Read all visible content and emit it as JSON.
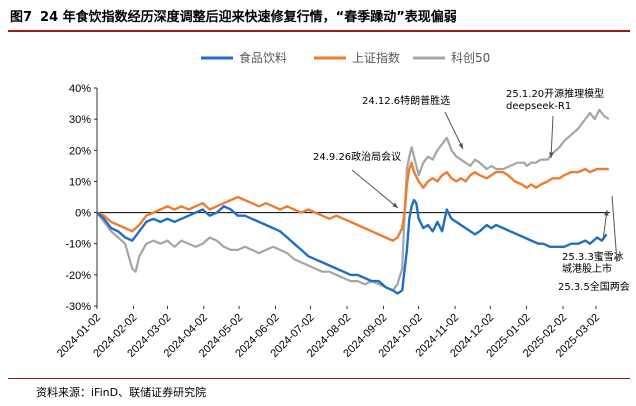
{
  "header": {
    "figure_no": "图7",
    "title": "24 年食饮指数经历深度调整后迎来快速修复行情，“春季躁动”表现偏弱"
  },
  "footer": {
    "source": "资料来源：iFinD、联储证券研究院"
  },
  "colors": {
    "food": "#1f6fc5",
    "sse": "#ed7d31",
    "star": "#a5a5a5",
    "zero": "#000000",
    "accent": "#9b1b1b"
  },
  "chart_data": {
    "type": "line",
    "ylim": [
      -30,
      40
    ],
    "yticks": [
      -30,
      -20,
      -10,
      0,
      10,
      20,
      30,
      40
    ],
    "ytick_labels": [
      "-30%",
      "-20%",
      "-10%",
      "0%",
      "10%",
      "20%",
      "30%",
      "40%"
    ],
    "xlim": [
      0,
      437
    ],
    "xticks": [
      0,
      31,
      60,
      91,
      121,
      152,
      182,
      213,
      244,
      274,
      305,
      335,
      366,
      397,
      425
    ],
    "xtick_labels": [
      "2024-01-02",
      "2024-02-02",
      "2024-03-02",
      "2024-04-02",
      "2024-05-02",
      "2024-06-02",
      "2024-07-02",
      "2024-08-02",
      "2024-09-02",
      "2024-10-02",
      "2024-11-02",
      "2024-12-02",
      "2025-01-02",
      "2025-02-02",
      "2025-03-02"
    ],
    "series": [
      {
        "name": "食品饮料",
        "key": "food",
        "points": [
          [
            0,
            0
          ],
          [
            6,
            -2
          ],
          [
            12,
            -5
          ],
          [
            18,
            -6
          ],
          [
            24,
            -8
          ],
          [
            30,
            -9
          ],
          [
            36,
            -6
          ],
          [
            42,
            -3
          ],
          [
            48,
            -2
          ],
          [
            54,
            -3
          ],
          [
            60,
            -2
          ],
          [
            66,
            -3
          ],
          [
            72,
            -2
          ],
          [
            78,
            -1
          ],
          [
            84,
            0
          ],
          [
            90,
            1
          ],
          [
            96,
            -1
          ],
          [
            102,
            0
          ],
          [
            108,
            2
          ],
          [
            114,
            1
          ],
          [
            120,
            -1
          ],
          [
            126,
            -1
          ],
          [
            132,
            -2
          ],
          [
            138,
            -3
          ],
          [
            144,
            -4
          ],
          [
            150,
            -5
          ],
          [
            156,
            -6
          ],
          [
            162,
            -8
          ],
          [
            168,
            -10
          ],
          [
            174,
            -12
          ],
          [
            180,
            -14
          ],
          [
            186,
            -15
          ],
          [
            192,
            -16
          ],
          [
            198,
            -17
          ],
          [
            204,
            -18
          ],
          [
            210,
            -19
          ],
          [
            216,
            -20
          ],
          [
            222,
            -20
          ],
          [
            228,
            -21
          ],
          [
            234,
            -22
          ],
          [
            240,
            -22
          ],
          [
            246,
            -24
          ],
          [
            252,
            -25
          ],
          [
            256,
            -26
          ],
          [
            260,
            -25
          ],
          [
            264,
            -12
          ],
          [
            266,
            -2
          ],
          [
            268,
            2
          ],
          [
            270,
            4
          ],
          [
            272,
            3
          ],
          [
            274,
            -2
          ],
          [
            278,
            -5
          ],
          [
            282,
            -4
          ],
          [
            286,
            -6
          ],
          [
            290,
            -3
          ],
          [
            294,
            -6
          ],
          [
            298,
            1
          ],
          [
            302,
            -2
          ],
          [
            306,
            -3
          ],
          [
            310,
            -4
          ],
          [
            314,
            -5
          ],
          [
            318,
            -6
          ],
          [
            322,
            -7
          ],
          [
            326,
            -6
          ],
          [
            332,
            -4
          ],
          [
            336,
            -5
          ],
          [
            340,
            -4
          ],
          [
            346,
            -5
          ],
          [
            352,
            -6
          ],
          [
            358,
            -7
          ],
          [
            364,
            -8
          ],
          [
            370,
            -9
          ],
          [
            376,
            -10
          ],
          [
            380,
            -10
          ],
          [
            386,
            -11
          ],
          [
            392,
            -11
          ],
          [
            398,
            -11
          ],
          [
            404,
            -10
          ],
          [
            410,
            -10
          ],
          [
            416,
            -9
          ],
          [
            420,
            -10
          ],
          [
            426,
            -8
          ],
          [
            430,
            -9
          ],
          [
            434,
            -7
          ]
        ]
      },
      {
        "name": "上证指数",
        "key": "sse",
        "points": [
          [
            0,
            0
          ],
          [
            6,
            -1
          ],
          [
            12,
            -3
          ],
          [
            18,
            -4
          ],
          [
            24,
            -5
          ],
          [
            30,
            -6
          ],
          [
            36,
            -4
          ],
          [
            42,
            -1
          ],
          [
            48,
            0
          ],
          [
            54,
            1
          ],
          [
            60,
            2
          ],
          [
            66,
            1
          ],
          [
            72,
            2
          ],
          [
            78,
            1
          ],
          [
            84,
            2
          ],
          [
            90,
            3
          ],
          [
            96,
            1
          ],
          [
            102,
            2
          ],
          [
            108,
            3
          ],
          [
            114,
            4
          ],
          [
            120,
            5
          ],
          [
            126,
            4
          ],
          [
            132,
            3
          ],
          [
            138,
            2
          ],
          [
            144,
            3
          ],
          [
            150,
            2
          ],
          [
            156,
            1
          ],
          [
            162,
            2
          ],
          [
            168,
            1
          ],
          [
            174,
            0
          ],
          [
            180,
            1
          ],
          [
            186,
            0
          ],
          [
            192,
            -1
          ],
          [
            198,
            -2
          ],
          [
            204,
            -1
          ],
          [
            210,
            -2
          ],
          [
            216,
            -3
          ],
          [
            222,
            -4
          ],
          [
            228,
            -5
          ],
          [
            234,
            -6
          ],
          [
            240,
            -7
          ],
          [
            246,
            -8
          ],
          [
            252,
            -9
          ],
          [
            256,
            -8
          ],
          [
            260,
            -5
          ],
          [
            262,
            0
          ],
          [
            264,
            9
          ],
          [
            266,
            14
          ],
          [
            268,
            16
          ],
          [
            270,
            13
          ],
          [
            274,
            10
          ],
          [
            278,
            8
          ],
          [
            282,
            10
          ],
          [
            286,
            11
          ],
          [
            290,
            10
          ],
          [
            294,
            12
          ],
          [
            298,
            13
          ],
          [
            302,
            11
          ],
          [
            306,
            10
          ],
          [
            310,
            11
          ],
          [
            314,
            10
          ],
          [
            318,
            12
          ],
          [
            322,
            13
          ],
          [
            326,
            12
          ],
          [
            332,
            11
          ],
          [
            336,
            12
          ],
          [
            340,
            13
          ],
          [
            346,
            13
          ],
          [
            350,
            12
          ],
          [
            356,
            10
          ],
          [
            362,
            9
          ],
          [
            366,
            8
          ],
          [
            370,
            9
          ],
          [
            374,
            8
          ],
          [
            378,
            9
          ],
          [
            384,
            10
          ],
          [
            388,
            11
          ],
          [
            394,
            11
          ],
          [
            398,
            12
          ],
          [
            404,
            13
          ],
          [
            410,
            13
          ],
          [
            416,
            14
          ],
          [
            420,
            13
          ],
          [
            426,
            14
          ],
          [
            432,
            14
          ],
          [
            436,
            14
          ]
        ]
      },
      {
        "name": "科创50",
        "key": "star",
        "points": [
          [
            0,
            0
          ],
          [
            6,
            -3
          ],
          [
            12,
            -6
          ],
          [
            18,
            -8
          ],
          [
            24,
            -10
          ],
          [
            30,
            -18
          ],
          [
            33,
            -19
          ],
          [
            36,
            -14
          ],
          [
            42,
            -10
          ],
          [
            48,
            -9
          ],
          [
            54,
            -10
          ],
          [
            60,
            -9
          ],
          [
            66,
            -11
          ],
          [
            72,
            -9
          ],
          [
            78,
            -10
          ],
          [
            84,
            -11
          ],
          [
            90,
            -10
          ],
          [
            96,
            -8
          ],
          [
            102,
            -9
          ],
          [
            108,
            -11
          ],
          [
            114,
            -12
          ],
          [
            120,
            -12
          ],
          [
            126,
            -11
          ],
          [
            132,
            -12
          ],
          [
            138,
            -13
          ],
          [
            144,
            -12
          ],
          [
            150,
            -11
          ],
          [
            156,
            -12
          ],
          [
            162,
            -13
          ],
          [
            168,
            -15
          ],
          [
            174,
            -16
          ],
          [
            180,
            -17
          ],
          [
            186,
            -18
          ],
          [
            192,
            -19
          ],
          [
            198,
            -19
          ],
          [
            204,
            -20
          ],
          [
            210,
            -21
          ],
          [
            216,
            -22
          ],
          [
            222,
            -22
          ],
          [
            228,
            -23
          ],
          [
            234,
            -22
          ],
          [
            240,
            -23
          ],
          [
            246,
            -24
          ],
          [
            252,
            -25
          ],
          [
            256,
            -23
          ],
          [
            260,
            -18
          ],
          [
            262,
            0
          ],
          [
            264,
            14
          ],
          [
            266,
            18
          ],
          [
            268,
            21
          ],
          [
            270,
            18
          ],
          [
            274,
            12
          ],
          [
            278,
            16
          ],
          [
            282,
            18
          ],
          [
            286,
            17
          ],
          [
            290,
            20
          ],
          [
            294,
            22
          ],
          [
            298,
            24
          ],
          [
            302,
            20
          ],
          [
            306,
            18
          ],
          [
            310,
            17
          ],
          [
            314,
            16
          ],
          [
            318,
            15
          ],
          [
            322,
            17
          ],
          [
            326,
            16
          ],
          [
            332,
            14
          ],
          [
            336,
            15
          ],
          [
            340,
            14
          ],
          [
            346,
            14
          ],
          [
            352,
            15
          ],
          [
            358,
            16
          ],
          [
            364,
            16
          ],
          [
            366,
            15
          ],
          [
            370,
            16
          ],
          [
            374,
            16
          ],
          [
            378,
            17
          ],
          [
            384,
            17
          ],
          [
            388,
            19
          ],
          [
            394,
            21
          ],
          [
            398,
            23
          ],
          [
            404,
            25
          ],
          [
            410,
            27
          ],
          [
            416,
            30
          ],
          [
            420,
            32
          ],
          [
            424,
            30
          ],
          [
            428,
            33
          ],
          [
            432,
            31
          ],
          [
            436,
            30
          ]
        ]
      }
    ],
    "annotations": [
      {
        "name": "ann-2492",
        "lines": [
          "24.9.26政治局会议"
        ]
      },
      {
        "name": "ann-24126",
        "lines": [
          "24.12.6特朗普胜选"
        ]
      },
      {
        "name": "ann-25120",
        "lines": [
          "25.1.20开源推理模型",
          "deepseek-R1"
        ]
      },
      {
        "name": "ann-2533",
        "lines": [
          "25.3.3蜜雪冰",
          "城港股上市"
        ]
      },
      {
        "name": "ann-2535",
        "lines": [
          "25.3.5全国两会"
        ]
      }
    ]
  }
}
